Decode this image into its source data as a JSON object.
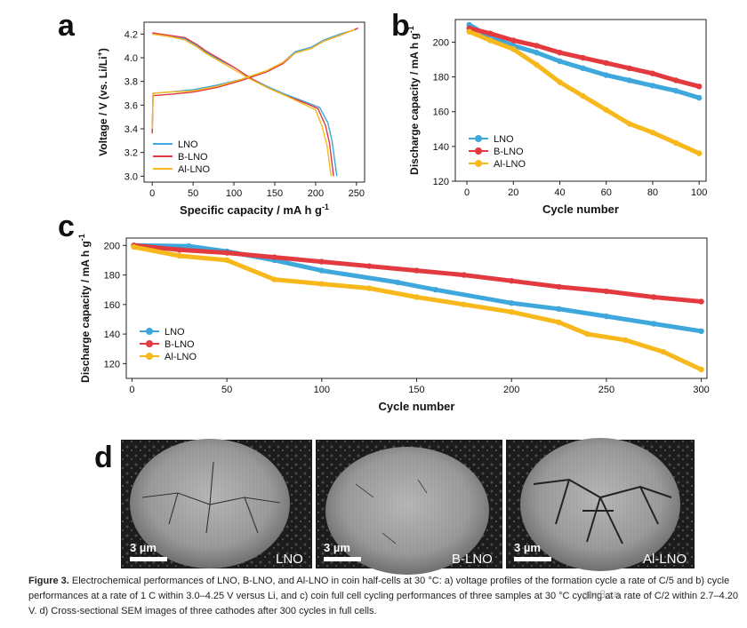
{
  "caption": {
    "label": "Figure 3.",
    "text": "Electrochemical performances of LNO, B-LNO, and Al-LNO in coin half-cells at 30 °C: a) voltage profiles of the formation cycle a rate of C/5 and b) cycle performances at a rate of 1 C within 3.0–4.25 V versus Li, and c) coin full cell cycling performances of three samples at 30 °C cycling at a rate of C/2 within 2.7–4.20 V. d) Cross-sectional SEM images of three cathodes after 300 cycles in full cells."
  },
  "watermark": "gbx8.cn",
  "colors": {
    "LNO": "#3ea8dc",
    "B-LNO": "#e23a3f",
    "Al-LNO": "#f7b81c"
  },
  "chart_data": [
    {
      "panel": "a",
      "type": "line",
      "title": "",
      "xlabel": "Specific capacity / mA h g",
      "xlabel_sup": "-1",
      "ylabel": "Voltage / V (vs. Li/Li",
      "ylabel_sup": "+",
      "ylabel_end": ")",
      "xlim": [
        -10,
        260
      ],
      "ylim": [
        2.95,
        4.3
      ],
      "xticks": [
        0,
        50,
        100,
        150,
        200,
        250
      ],
      "yticks": [
        3.0,
        3.2,
        3.4,
        3.6,
        3.8,
        4.0,
        4.2
      ],
      "ytick_labels": [
        "3.0",
        "3.2",
        "3.4",
        "3.6",
        "3.8",
        "4.0",
        "4.2"
      ],
      "legend": [
        "LNO",
        "B-LNO",
        "Al-LNO"
      ],
      "legend_position": "bottom-left",
      "series": [
        {
          "name": "LNO",
          "charge": [
            [
              0,
              3.38
            ],
            [
              1,
              3.7
            ],
            [
              20,
              3.71
            ],
            [
              50,
              3.73
            ],
            [
              80,
              3.77
            ],
            [
              110,
              3.82
            ],
            [
              140,
              3.89
            ],
            [
              160,
              3.96
            ],
            [
              175,
              4.05
            ],
            [
              195,
              4.09
            ],
            [
              210,
              4.15
            ],
            [
              230,
              4.2
            ],
            [
              250,
              4.24
            ]
          ],
          "discharge": [
            [
              0,
              4.2
            ],
            [
              20,
              4.18
            ],
            [
              40,
              4.16
            ],
            [
              55,
              4.1
            ],
            [
              65,
              4.05
            ],
            [
              80,
              3.99
            ],
            [
              100,
              3.92
            ],
            [
              120,
              3.83
            ],
            [
              140,
              3.76
            ],
            [
              160,
              3.7
            ],
            [
              190,
              3.62
            ],
            [
              205,
              3.58
            ],
            [
              215,
              3.45
            ],
            [
              220,
              3.3
            ],
            [
              226,
              3.0
            ]
          ]
        },
        {
          "name": "B-LNO",
          "charge": [
            [
              0,
              3.36
            ],
            [
              1,
              3.68
            ],
            [
              20,
              3.69
            ],
            [
              50,
              3.71
            ],
            [
              80,
              3.75
            ],
            [
              110,
              3.81
            ],
            [
              140,
              3.88
            ],
            [
              160,
              3.95
            ],
            [
              175,
              4.04
            ],
            [
              195,
              4.08
            ],
            [
              210,
              4.14
            ],
            [
              230,
              4.19
            ],
            [
              252,
              4.25
            ]
          ],
          "discharge": [
            [
              0,
              4.21
            ],
            [
              20,
              4.19
            ],
            [
              40,
              4.17
            ],
            [
              55,
              4.11
            ],
            [
              65,
              4.06
            ],
            [
              80,
              4.0
            ],
            [
              100,
              3.92
            ],
            [
              120,
              3.83
            ],
            [
              140,
              3.75
            ],
            [
              160,
              3.69
            ],
            [
              190,
              3.61
            ],
            [
              203,
              3.57
            ],
            [
              212,
              3.43
            ],
            [
              217,
              3.28
            ],
            [
              222,
              3.0
            ]
          ]
        },
        {
          "name": "Al-LNO",
          "charge": [
            [
              0,
              3.4
            ],
            [
              1,
              3.7
            ],
            [
              20,
              3.71
            ],
            [
              50,
              3.72
            ],
            [
              80,
              3.76
            ],
            [
              110,
              3.82
            ],
            [
              140,
              3.89
            ],
            [
              160,
              3.96
            ],
            [
              175,
              4.04
            ],
            [
              195,
              4.08
            ],
            [
              210,
              4.14
            ],
            [
              230,
              4.19
            ],
            [
              248,
              4.24
            ]
          ],
          "discharge": [
            [
              0,
              4.2
            ],
            [
              20,
              4.18
            ],
            [
              40,
              4.15
            ],
            [
              55,
              4.09
            ],
            [
              65,
              4.04
            ],
            [
              80,
              3.98
            ],
            [
              100,
              3.9
            ],
            [
              120,
              3.82
            ],
            [
              140,
              3.75
            ],
            [
              160,
              3.69
            ],
            [
              185,
              3.61
            ],
            [
              200,
              3.56
            ],
            [
              208,
              3.42
            ],
            [
              214,
              3.26
            ],
            [
              219,
              3.0
            ]
          ]
        }
      ]
    },
    {
      "panel": "b",
      "type": "scatter",
      "title": "",
      "xlabel": "Cycle number",
      "ylabel": "Discharge capacity / mA h g",
      "ylabel_sup": "-1",
      "xlim": [
        -5,
        103
      ],
      "ylim": [
        120,
        213
      ],
      "xticks": [
        0,
        20,
        40,
        60,
        80,
        100
      ],
      "yticks": [
        120,
        140,
        160,
        180,
        200
      ],
      "legend": [
        "LNO",
        "B-LNO",
        "Al-LNO"
      ],
      "legend_position": "bottom-left",
      "series": [
        {
          "name": "LNO",
          "points": [
            [
              1,
              210
            ],
            [
              10,
              203
            ],
            [
              20,
              198
            ],
            [
              30,
              194
            ],
            [
              40,
              189
            ],
            [
              50,
              185
            ],
            [
              60,
              181
            ],
            [
              70,
              178
            ],
            [
              80,
              175
            ],
            [
              90,
              172
            ],
            [
              100,
              168
            ]
          ]
        },
        {
          "name": "B-LNO",
          "points": [
            [
              1,
              208
            ],
            [
              10,
              205
            ],
            [
              20,
              201
            ],
            [
              30,
              198
            ],
            [
              40,
              194
            ],
            [
              50,
              191
            ],
            [
              60,
              188
            ],
            [
              70,
              185
            ],
            [
              80,
              182
            ],
            [
              90,
              178
            ],
            [
              100,
              174.5
            ]
          ]
        },
        {
          "name": "Al-LNO",
          "points": [
            [
              1,
              206
            ],
            [
              10,
              201
            ],
            [
              20,
              196
            ],
            [
              30,
              187
            ],
            [
              40,
              177
            ],
            [
              50,
              169
            ],
            [
              60,
              161
            ],
            [
              70,
              153
            ],
            [
              80,
              148
            ],
            [
              90,
              142
            ],
            [
              100,
              136
            ]
          ]
        }
      ]
    },
    {
      "panel": "c",
      "type": "scatter",
      "title": "",
      "xlabel": "Cycle number",
      "ylabel": "Discharge capacity / mA h g",
      "ylabel_sup": "-1",
      "xlim": [
        -3,
        303
      ],
      "ylim": [
        110,
        205
      ],
      "xticks": [
        0,
        50,
        100,
        150,
        200,
        250,
        300
      ],
      "yticks": [
        120,
        140,
        160,
        180,
        200
      ],
      "legend": [
        "LNO",
        "B-LNO",
        "Al-LNO"
      ],
      "legend_position": "bottom-left",
      "series": [
        {
          "name": "LNO",
          "points": [
            [
              1,
              200
            ],
            [
              30,
              199.5
            ],
            [
              50,
              196
            ],
            [
              75,
              190
            ],
            [
              100,
              183
            ],
            [
              140,
              175
            ],
            [
              160,
              170
            ],
            [
              200,
              161
            ],
            [
              225,
              157
            ],
            [
              250,
              152
            ],
            [
              275,
              147
            ],
            [
              300,
              142
            ]
          ]
        },
        {
          "name": "B-LNO",
          "points": [
            [
              1,
              200
            ],
            [
              25,
              197
            ],
            [
              50,
              195
            ],
            [
              75,
              192
            ],
            [
              100,
              189
            ],
            [
              125,
              186
            ],
            [
              150,
              183
            ],
            [
              175,
              180
            ],
            [
              200,
              176
            ],
            [
              225,
              172
            ],
            [
              250,
              169
            ],
            [
              275,
              165
            ],
            [
              300,
              162
            ]
          ]
        },
        {
          "name": "Al-LNO",
          "points": [
            [
              1,
              199
            ],
            [
              25,
              193
            ],
            [
              50,
              190
            ],
            [
              75,
              177
            ],
            [
              100,
              174
            ],
            [
              125,
              171
            ],
            [
              150,
              165
            ],
            [
              175,
              160
            ],
            [
              200,
              155
            ],
            [
              225,
              148
            ],
            [
              240,
              140
            ],
            [
              260,
              136
            ],
            [
              280,
              128
            ],
            [
              300,
              116
            ]
          ]
        }
      ]
    }
  ],
  "sem": {
    "panel": "d",
    "images": [
      {
        "sample": "LNO",
        "scale": "3 µm"
      },
      {
        "sample": "B-LNO",
        "scale": "3 µm"
      },
      {
        "sample": "Al-LNO",
        "scale": "3 µm"
      }
    ]
  }
}
